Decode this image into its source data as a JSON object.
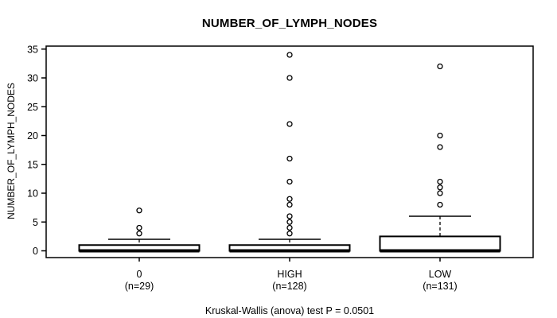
{
  "title": "NUMBER_OF_LYMPH_NODES",
  "chart_data": {
    "type": "boxplot",
    "title": "NUMBER_OF_LYMPH_NODES",
    "ylabel": "NUMBER_OF_LYMPH_NODES",
    "xlabel": "",
    "caption": "Kruskal-Wallis (anova) test P = 0.0501",
    "ylim": [
      0,
      35
    ],
    "yticks": [
      0,
      5,
      10,
      15,
      20,
      25,
      30,
      35
    ],
    "grid": false,
    "legend": "none",
    "groups": [
      {
        "label": "0",
        "sublabel": "(n=29)",
        "n": 29,
        "q1": 0,
        "median": 0,
        "q3": 1,
        "whisker_low": 0,
        "whisker_high": 2,
        "outliers": [
          3,
          4,
          7
        ]
      },
      {
        "label": "HIGH",
        "sublabel": "(n=128)",
        "n": 128,
        "q1": 0,
        "median": 0,
        "q3": 1,
        "whisker_low": 0,
        "whisker_high": 2,
        "outliers": [
          3,
          4,
          5,
          6,
          8,
          9,
          12,
          16,
          22,
          30,
          34
        ]
      },
      {
        "label": "LOW",
        "sublabel": "(n=131)",
        "n": 131,
        "q1": 0,
        "median": 0,
        "q3": 2.5,
        "whisker_low": 0,
        "whisker_high": 6,
        "outliers": [
          8,
          10,
          11,
          12,
          18,
          20,
          32
        ]
      }
    ]
  },
  "colors": {
    "stroke": "#000000",
    "box_fill": "#ffffff",
    "background": "#ffffff"
  }
}
